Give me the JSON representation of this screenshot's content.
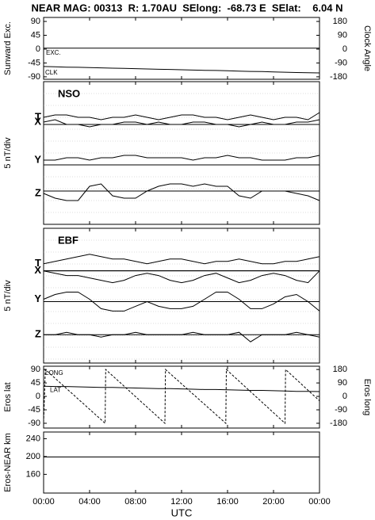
{
  "title": "NEAR MAG: 00313  R: 1.70AU  SElong:  -68.73 E  SElat:    6.04 N",
  "chart_data": [
    {
      "type": "line",
      "ylabel": "Sunward Exc.",
      "y2label": "Clock Angle",
      "xlim": [
        0,
        24
      ],
      "x": [
        0,
        1,
        2,
        3,
        4,
        5,
        6,
        7,
        8,
        9,
        10,
        11,
        12,
        13,
        14,
        15,
        16,
        17,
        18,
        19,
        20,
        21,
        22,
        23,
        24
      ],
      "ylim": [
        -98,
        103
      ],
      "yticks": [
        90,
        45,
        0,
        -45,
        -90
      ],
      "y2lim": [
        -196,
        206
      ],
      "y2ticks": [
        180,
        90,
        0,
        -90,
        -180
      ],
      "series": [
        {
          "name": "EXC.",
          "color": "#000000",
          "values": [
            3,
            3,
            3,
            3,
            3,
            3,
            3,
            3,
            3,
            3,
            3,
            3,
            3,
            3,
            3,
            3,
            3,
            3,
            3,
            3,
            3,
            3,
            3,
            3,
            3
          ]
        },
        {
          "name": "CLK",
          "color": "#000000",
          "axis": "y2",
          "values": [
            -113,
            -115,
            -117,
            -118,
            -120,
            -122,
            -124,
            -125,
            -127,
            -129,
            -131,
            -132,
            -134,
            -136,
            -138,
            -139,
            -141,
            -143,
            -145,
            -146,
            -148,
            -150,
            -152,
            -153,
            -155
          ]
        }
      ]
    },
    {
      "type": "line",
      "title": "NSO",
      "ylabel": "5 nT/div",
      "xlim": [
        0,
        24
      ],
      "x": [
        0,
        1,
        2,
        3,
        4,
        5,
        6,
        7,
        8,
        9,
        10,
        11,
        12,
        13,
        14,
        15,
        16,
        17,
        18,
        19,
        20,
        21,
        22,
        23,
        24
      ],
      "ylim": [
        0,
        60
      ],
      "series": [
        {
          "name": "T",
          "color": "#000000",
          "baseline": 42,
          "values": [
            45,
            46,
            46,
            45,
            45,
            44,
            45,
            45,
            46,
            45,
            44,
            45,
            46,
            46,
            45,
            45,
            44,
            45,
            46,
            45,
            44,
            45,
            45,
            44,
            47
          ]
        },
        {
          "name": "X",
          "color": "#000000",
          "baseline": 42,
          "values": [
            43,
            44,
            42,
            42,
            41,
            42,
            42,
            43,
            43,
            42,
            43,
            42,
            42,
            43,
            43,
            42,
            42,
            41,
            42,
            43,
            42,
            42,
            43,
            43,
            44
          ]
        },
        {
          "name": "Y",
          "color": "#000000",
          "baseline": 25,
          "values": [
            27,
            27,
            28,
            28,
            27,
            28,
            28,
            29,
            29,
            28,
            28,
            28,
            28,
            27,
            28,
            28,
            29,
            28,
            28,
            27,
            27,
            27,
            28,
            28,
            29
          ]
        },
        {
          "name": "Z",
          "color": "#000000",
          "baseline": 14,
          "values": [
            13,
            11,
            10,
            10,
            16,
            17,
            12,
            11,
            11,
            14,
            16,
            17,
            17,
            16,
            17,
            16,
            16,
            12,
            11,
            14,
            14,
            14,
            13,
            12,
            10
          ]
        }
      ]
    },
    {
      "type": "line",
      "title": "EBF",
      "ylabel": "5 nT/div",
      "xlim": [
        0,
        24
      ],
      "x": [
        0,
        1,
        2,
        3,
        4,
        5,
        6,
        7,
        8,
        9,
        10,
        11,
        12,
        13,
        14,
        15,
        16,
        17,
        18,
        19,
        20,
        21,
        22,
        23,
        24
      ],
      "ylim": [
        0,
        57
      ],
      "series": [
        {
          "name": "T",
          "color": "#000000",
          "baseline": 39,
          "values": [
            42,
            43,
            44,
            45,
            46,
            45,
            44,
            44,
            43,
            42,
            43,
            44,
            44,
            43,
            42,
            43,
            43,
            44,
            43,
            42,
            42,
            43,
            43,
            44,
            45
          ]
        },
        {
          "name": "X",
          "color": "#000000",
          "baseline": 39,
          "values": [
            39,
            38,
            37,
            37,
            36,
            35,
            34,
            35,
            37,
            38,
            37,
            35,
            34,
            35,
            37,
            38,
            36,
            34,
            35,
            37,
            38,
            37,
            35,
            34,
            39
          ]
        },
        {
          "name": "Y",
          "color": "#000000",
          "baseline": 26,
          "values": [
            27,
            29,
            30,
            30,
            27,
            23,
            22,
            22,
            24,
            26,
            24,
            23,
            23,
            24,
            27,
            30,
            30,
            27,
            23,
            23,
            25,
            28,
            29,
            26,
            22
          ]
        },
        {
          "name": "Z",
          "color": "#000000",
          "baseline": 12,
          "values": [
            12,
            12,
            13,
            12,
            12,
            11,
            12,
            12,
            13,
            12,
            12,
            12,
            12,
            13,
            12,
            12,
            12,
            13,
            9,
            12,
            12,
            12,
            13,
            12,
            11
          ]
        }
      ]
    },
    {
      "type": "line",
      "ylabel": "Eros lat",
      "y2label": "Eros long",
      "xlim": [
        0,
        24
      ],
      "x": [
        0,
        1,
        2,
        3,
        4,
        5,
        6,
        7,
        8,
        9,
        10,
        11,
        12,
        13,
        14,
        15,
        16,
        17,
        18,
        19,
        20,
        21,
        22,
        23,
        24
      ],
      "ylim": [
        -106,
        101
      ],
      "yticks": [
        90,
        45,
        0,
        -45,
        -90
      ],
      "y2lim": [
        -212,
        202
      ],
      "y2ticks": [
        180,
        90,
        0,
        -90,
        -180
      ],
      "series": [
        {
          "name": "LONG",
          "color": "#000000",
          "axis": "y2",
          "dashed": true,
          "x": [
            0,
            0.15,
            5.35,
            5.4,
            10.55,
            10.6,
            15.85,
            15.9,
            21.0,
            21.05,
            24
          ],
          "values": [
            -175,
            180,
            -180,
            180,
            -180,
            180,
            -180,
            180,
            -180,
            180,
            -30
          ]
        },
        {
          "name": "LAT",
          "color": "#000000",
          "values": [
            34,
            33,
            33,
            32,
            31,
            30,
            30,
            29,
            28,
            27,
            26,
            26,
            25,
            24,
            23,
            23,
            22,
            21,
            20,
            20,
            19,
            18,
            17,
            17,
            16
          ]
        }
      ]
    },
    {
      "type": "line",
      "ylabel": "Eros-NEAR km",
      "xlabel": "UTC",
      "xlim": [
        0,
        24
      ],
      "x": [
        0,
        1,
        2,
        3,
        4,
        5,
        6,
        7,
        8,
        9,
        10,
        11,
        12,
        13,
        14,
        15,
        16,
        17,
        18,
        19,
        20,
        21,
        22,
        23,
        24
      ],
      "xticks": [
        {
          "value": 0,
          "label": "00:00"
        },
        {
          "value": 4,
          "label": "04:00"
        },
        {
          "value": 8,
          "label": "08:00"
        },
        {
          "value": 12,
          "label": "12:00"
        },
        {
          "value": 16,
          "label": "16:00"
        },
        {
          "value": 20,
          "label": "20:00"
        },
        {
          "value": 24,
          "label": "00:00"
        }
      ],
      "ylim": [
        118,
        255
      ],
      "yticks": [
        240,
        200,
        160
      ],
      "series": [
        {
          "name": null,
          "color": "#000000",
          "values": [
            199,
            199,
            199,
            199,
            199,
            199,
            199,
            199,
            199,
            199,
            199,
            199,
            199,
            199,
            199,
            199,
            199,
            199,
            199,
            199,
            199,
            199,
            199,
            199,
            199
          ]
        }
      ]
    }
  ]
}
